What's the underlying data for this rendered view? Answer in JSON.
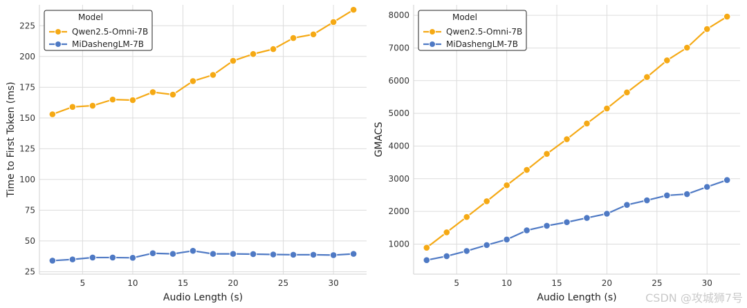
{
  "chart_data": [
    {
      "type": "line",
      "xlabel": "Audio Length (s)",
      "ylabel": "Time to First Token (ms)",
      "xlim": [
        0.7,
        33.3
      ],
      "ylim": [
        23,
        242
      ],
      "xticks": [
        5,
        10,
        15,
        20,
        25,
        30
      ],
      "yticks": [
        25,
        50,
        75,
        100,
        125,
        150,
        175,
        200,
        225
      ],
      "grid": true,
      "legend": {
        "title": "Model",
        "placement": "top-left"
      },
      "x": [
        2,
        4,
        6,
        8,
        10,
        12,
        14,
        16,
        18,
        20,
        22,
        24,
        26,
        28,
        30,
        32
      ],
      "series": [
        {
          "name": "Qwen2.5-Omni-7B",
          "color": "#f5a914",
          "values": [
            153,
            159,
            160,
            165,
            164.5,
            171,
            169,
            180,
            185,
            196.5,
            202,
            206,
            215,
            218,
            228,
            238
          ]
        },
        {
          "name": "MiDashengLM-7B",
          "color": "#4e79c4",
          "values": [
            34,
            35,
            36.5,
            36.5,
            36.3,
            40,
            39.5,
            42,
            39.5,
            39.5,
            39.3,
            39,
            38.8,
            38.8,
            38.5,
            39.5
          ]
        }
      ]
    },
    {
      "type": "line",
      "xlabel": "Audio Length (s)",
      "ylabel": "GMACS",
      "xlim": [
        0.7,
        33.3
      ],
      "ylim": [
        80,
        8320
      ],
      "xticks": [
        5,
        10,
        15,
        20,
        25,
        30
      ],
      "yticks": [
        1000,
        2000,
        3000,
        4000,
        5000,
        6000,
        7000,
        8000
      ],
      "grid": true,
      "legend": {
        "title": "Model",
        "placement": "top-left"
      },
      "x": [
        2,
        4,
        6,
        8,
        10,
        12,
        14,
        16,
        18,
        20,
        22,
        24,
        26,
        28,
        30,
        32
      ],
      "series": [
        {
          "name": "Qwen2.5-Omni-7B",
          "color": "#f5a914",
          "values": [
            890,
            1360,
            1830,
            2310,
            2800,
            3270,
            3760,
            4210,
            4690,
            5150,
            5640,
            6110,
            6620,
            7010,
            7580,
            7960
          ]
        },
        {
          "name": "MiDashengLM-7B",
          "color": "#4e79c4",
          "values": [
            510,
            630,
            790,
            970,
            1140,
            1420,
            1560,
            1670,
            1800,
            1930,
            2200,
            2340,
            2490,
            2530,
            2750,
            2960
          ]
        }
      ]
    }
  ],
  "watermark": "CSDN @攻城狮7号"
}
